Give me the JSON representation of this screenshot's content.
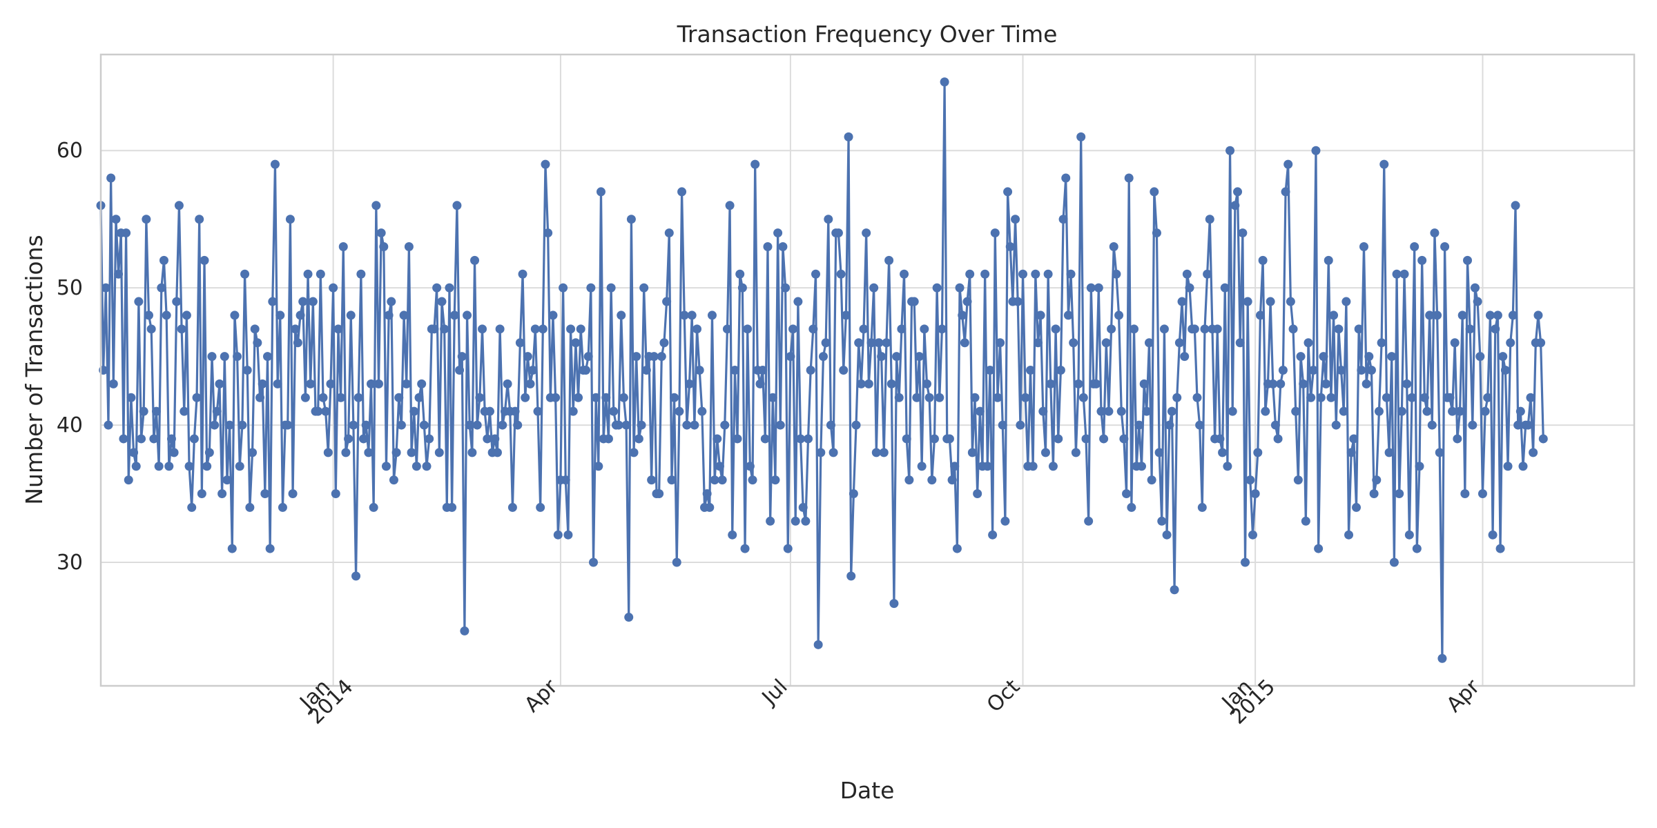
{
  "chart_data": {
    "type": "line",
    "title": "Transaction Frequency Over Time",
    "xlabel": "Date",
    "ylabel": "Number of Transactions",
    "x_start": "2013-10-01",
    "x_end": "2015-05-31",
    "ylim": [
      21,
      67
    ],
    "yticks": [
      30,
      40,
      50,
      60
    ],
    "xticks": [
      {
        "date": "2014-01-01",
        "label": [
          "Jan",
          "2014"
        ]
      },
      {
        "date": "2014-04-01",
        "label": [
          "Apr"
        ]
      },
      {
        "date": "2014-07-01",
        "label": [
          "Jul"
        ]
      },
      {
        "date": "2014-10-01",
        "label": [
          "Oct"
        ]
      },
      {
        "date": "2015-01-01",
        "label": [
          "Jan",
          "2015"
        ]
      },
      {
        "date": "2015-04-01",
        "label": [
          "Apr"
        ]
      }
    ],
    "grid": true,
    "marker": "circle",
    "color": "#4c72b0",
    "series": [
      {
        "x_start": "2013-10-01",
        "x_step_days": 1,
        "values": [
          56,
          44,
          50,
          40,
          58,
          43,
          55,
          51,
          54,
          39,
          54,
          36,
          42,
          38,
          37,
          49,
          39,
          41,
          55,
          48,
          47,
          39,
          41,
          37,
          50,
          52,
          48,
          37,
          39,
          38,
          49,
          56,
          47,
          41,
          48,
          37,
          34,
          39,
          42,
          55,
          35,
          52,
          37,
          38,
          45,
          40,
          41,
          43,
          35,
          45,
          36,
          40,
          31,
          48,
          45,
          37,
          40,
          51,
          44,
          34,
          38,
          47,
          46,
          42,
          43,
          35,
          45,
          31,
          49,
          59,
          43,
          48,
          34,
          40,
          40,
          55,
          35,
          47,
          46,
          48,
          49,
          42,
          51,
          43,
          49,
          41,
          41,
          51,
          42,
          41,
          38,
          43,
          50,
          35,
          47,
          42,
          53,
          38,
          39,
          48,
          40,
          29,
          42,
          51,
          39,
          40,
          38,
          43,
          34,
          56,
          43,
          54,
          53,
          37,
          48,
          49,
          36,
          38,
          42,
          40,
          48,
          43,
          53,
          38,
          41,
          37,
          42,
          43,
          40,
          37,
          39,
          47,
          47,
          50,
          38,
          49,
          47,
          34,
          50,
          34,
          48,
          56,
          44,
          45,
          25,
          48,
          40,
          38,
          52,
          40,
          42,
          47,
          41,
          39,
          41,
          38,
          39,
          38,
          47,
          40,
          41,
          43,
          41,
          34,
          41,
          40,
          46,
          51,
          42,
          45,
          43,
          44,
          47,
          41,
          34,
          47,
          59,
          54,
          42,
          48,
          42,
          32,
          36,
          50,
          36,
          32,
          47,
          41,
          46,
          42,
          47,
          44,
          44,
          45,
          50,
          30,
          42,
          37,
          57,
          39,
          42,
          39,
          50,
          41,
          40,
          40,
          48,
          42,
          40,
          26,
          55,
          38,
          45,
          39,
          40,
          50,
          44,
          45,
          36,
          45,
          35,
          35,
          45,
          46,
          49,
          54,
          36,
          42,
          30,
          41,
          57,
          48,
          40,
          43,
          48,
          40,
          47,
          44,
          41,
          34,
          35,
          34,
          48,
          36,
          39,
          37,
          36,
          40,
          47,
          56,
          32,
          44,
          39,
          51,
          50,
          31,
          47,
          37,
          36,
          59,
          44,
          43,
          44,
          39,
          53,
          33,
          42,
          36,
          54,
          40,
          53,
          50,
          31,
          45,
          47,
          33,
          49,
          39,
          34,
          33,
          39,
          44,
          47,
          51,
          24,
          38,
          45,
          46,
          55,
          40,
          38,
          54,
          54,
          51,
          44,
          48,
          61,
          29,
          35,
          40,
          46,
          43,
          47,
          54,
          43,
          46,
          50,
          38,
          46,
          45,
          38,
          46,
          52,
          43,
          27,
          45,
          42,
          47,
          51,
          39,
          36,
          49,
          49,
          42,
          45,
          37,
          47,
          43,
          42,
          36,
          39,
          50,
          42,
          47,
          65,
          39,
          39,
          36,
          37,
          31,
          50,
          48,
          46,
          49,
          51,
          38,
          42,
          35,
          41,
          37,
          51,
          37,
          44,
          32,
          54,
          42,
          46,
          40,
          33,
          57,
          53,
          49,
          55,
          49,
          40,
          51,
          42,
          37,
          44,
          37,
          51,
          46,
          48,
          41,
          38,
          51,
          43,
          37,
          47,
          39,
          44,
          55,
          58,
          48,
          51,
          46,
          38,
          43,
          61,
          42,
          39,
          33,
          50,
          43,
          43,
          50,
          41,
          39,
          46,
          41,
          47,
          53,
          51,
          48,
          41,
          39,
          35,
          58,
          34,
          47,
          37,
          40,
          37,
          43,
          41,
          46,
          36,
          57,
          54,
          38,
          33,
          47,
          32,
          40,
          41,
          28,
          42,
          46,
          49,
          45,
          51,
          50,
          47,
          47,
          42,
          40,
          34,
          47,
          51,
          55,
          47,
          39,
          47,
          39,
          38,
          50,
          37,
          60,
          41,
          56,
          57,
          46,
          54,
          30,
          49,
          36,
          32,
          35,
          38,
          48,
          52,
          41,
          43,
          49,
          43,
          40,
          39,
          43,
          44,
          57,
          59,
          49,
          47,
          41,
          36,
          45,
          43,
          33,
          46,
          42,
          44,
          60,
          31,
          42,
          45,
          43,
          52,
          42,
          48,
          40,
          47,
          44,
          41,
          49,
          32,
          38,
          39,
          34,
          47,
          44,
          53,
          43,
          45,
          44,
          35,
          36,
          41,
          46,
          59,
          42,
          38,
          45,
          30,
          51,
          35,
          41,
          51,
          43,
          32,
          42,
          53,
          31,
          37,
          52,
          42,
          41,
          48,
          40,
          54,
          48,
          38,
          23,
          53,
          42,
          42,
          41,
          46,
          39,
          41,
          48,
          35,
          52,
          47,
          40,
          50,
          49,
          45,
          35,
          41,
          42,
          48,
          32,
          47,
          48,
          31,
          45,
          44,
          37,
          46,
          48,
          56,
          40,
          41,
          37,
          40,
          40,
          42,
          38,
          46,
          48,
          46,
          39
        ]
      }
    ]
  }
}
